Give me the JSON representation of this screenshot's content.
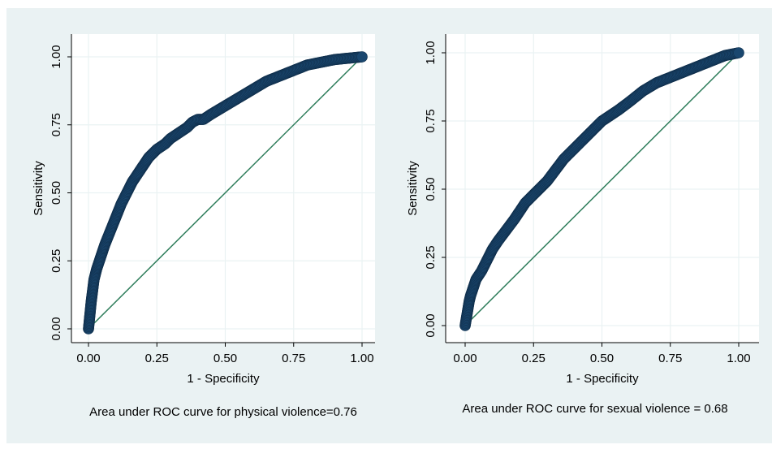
{
  "colors": {
    "outer_background": "#eaf2f3",
    "plot_background": "#ffffff",
    "grid": "#eaf2f3",
    "roc_marker": "#1a476f",
    "reference_line": "#2e7d5b"
  },
  "chart_data": [
    {
      "type": "scatter",
      "title": "",
      "xlabel": "1 - Specificity",
      "ylabel": "Sensitivity",
      "xlim": [
        0,
        1
      ],
      "ylim": [
        0,
        1
      ],
      "x_ticks": [
        "0.00",
        "0.25",
        "0.50",
        "0.75",
        "1.00"
      ],
      "y_ticks": [
        "0.00",
        "0.25",
        "0.50",
        "0.75",
        "1.00"
      ],
      "grid": true,
      "reference_line": "diagonal",
      "caption": "Area under ROC curve for physical violence=0.76",
      "series": [
        {
          "x": [
            0.0,
            0.005,
            0.01,
            0.015,
            0.02,
            0.03,
            0.04,
            0.05,
            0.06,
            0.08,
            0.1,
            0.12,
            0.14,
            0.16,
            0.18,
            0.2,
            0.22,
            0.25,
            0.28,
            0.3,
            0.33,
            0.36,
            0.38,
            0.4,
            0.42,
            0.45,
            0.5,
            0.55,
            0.6,
            0.65,
            0.7,
            0.75,
            0.8,
            0.85,
            0.9,
            0.95,
            1.0
          ],
          "y": [
            0.0,
            0.05,
            0.1,
            0.14,
            0.18,
            0.22,
            0.25,
            0.28,
            0.31,
            0.36,
            0.41,
            0.46,
            0.5,
            0.54,
            0.57,
            0.6,
            0.63,
            0.66,
            0.68,
            0.7,
            0.72,
            0.74,
            0.76,
            0.77,
            0.77,
            0.79,
            0.82,
            0.85,
            0.88,
            0.91,
            0.93,
            0.95,
            0.97,
            0.98,
            0.99,
            0.995,
            1.0
          ]
        }
      ]
    },
    {
      "type": "scatter",
      "title": "",
      "xlabel": "1 - Specificity",
      "ylabel": "Sensitivity",
      "xlim": [
        0,
        1
      ],
      "ylim": [
        0,
        1
      ],
      "x_ticks": [
        "0.00",
        "0.25",
        "0.50",
        "0.75",
        "1.00"
      ],
      "y_ticks": [
        "0.00",
        "0.25",
        "0.50",
        "0.75",
        "1.00"
      ],
      "grid": true,
      "reference_line": "diagonal",
      "caption": "Area under ROC curve for sexual violence = 0.68",
      "series": [
        {
          "x": [
            0.0,
            0.005,
            0.01,
            0.015,
            0.02,
            0.03,
            0.04,
            0.06,
            0.08,
            0.1,
            0.12,
            0.15,
            0.18,
            0.2,
            0.22,
            0.25,
            0.28,
            0.3,
            0.33,
            0.36,
            0.4,
            0.44,
            0.48,
            0.5,
            0.53,
            0.56,
            0.6,
            0.65,
            0.7,
            0.75,
            0.8,
            0.85,
            0.9,
            0.95,
            1.0
          ],
          "y": [
            0.0,
            0.03,
            0.06,
            0.09,
            0.11,
            0.14,
            0.17,
            0.2,
            0.24,
            0.28,
            0.31,
            0.35,
            0.39,
            0.42,
            0.45,
            0.48,
            0.51,
            0.53,
            0.57,
            0.61,
            0.65,
            0.69,
            0.73,
            0.75,
            0.77,
            0.79,
            0.82,
            0.86,
            0.89,
            0.91,
            0.93,
            0.95,
            0.97,
            0.99,
            1.0
          ]
        }
      ]
    }
  ]
}
